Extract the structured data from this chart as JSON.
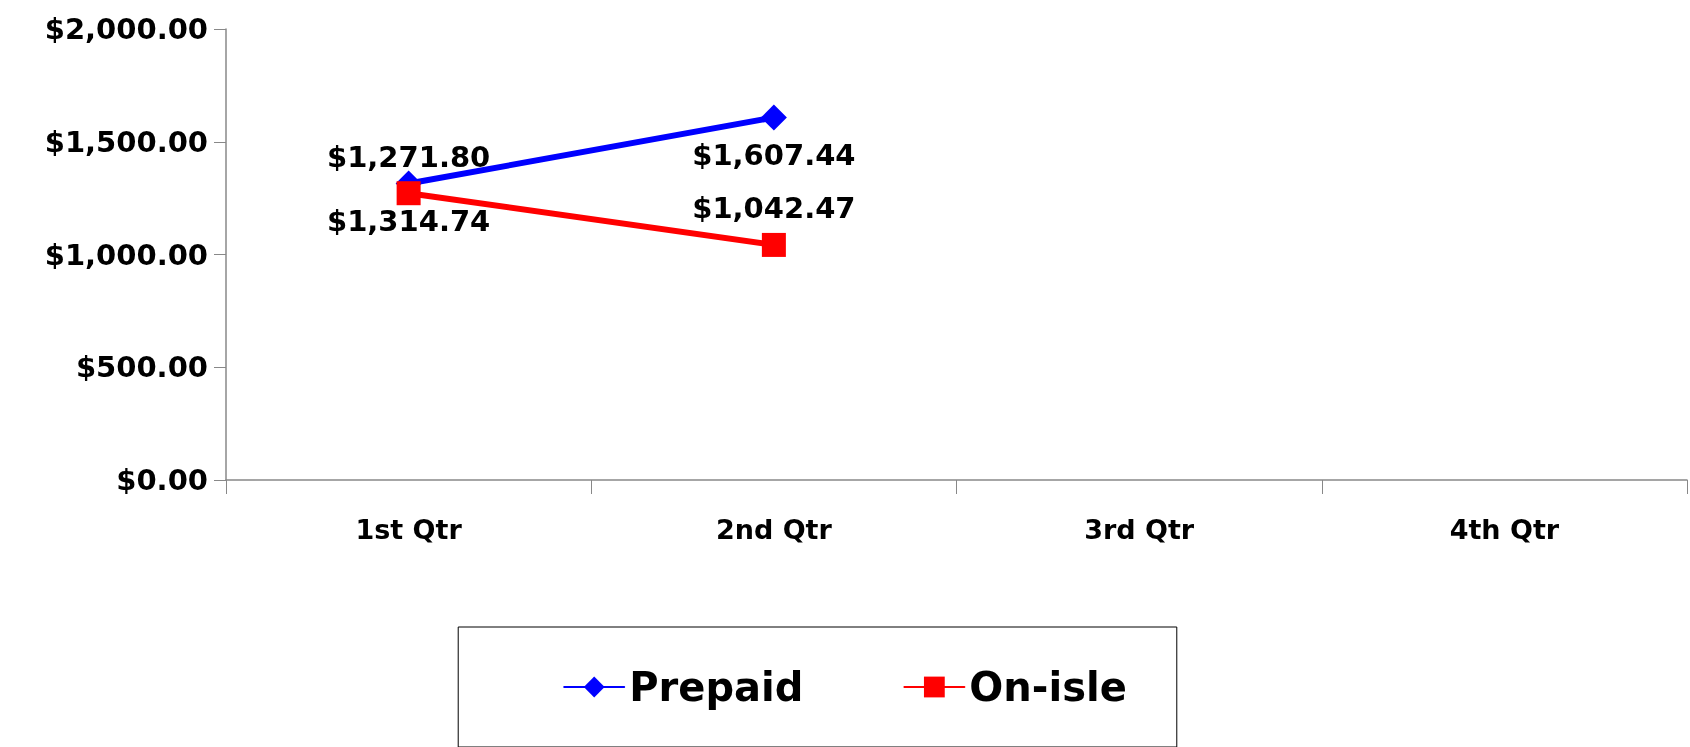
{
  "chart_data": {
    "type": "line",
    "categories": [
      "1st Qtr",
      "2nd Qtr",
      "3rd Qtr",
      "4th Qtr"
    ],
    "series": [
      {
        "name": "Prepaid",
        "color": "#0000ff",
        "marker": "diamond",
        "values": [
          1314.74,
          1607.44,
          null,
          null
        ],
        "value_labels": [
          "$1,314.74",
          "$1,607.44",
          null,
          null
        ]
      },
      {
        "name": "On-isle",
        "color": "#ff0000",
        "marker": "square",
        "values": [
          1271.8,
          1042.47,
          null,
          null
        ],
        "value_labels": [
          "$1,271.80",
          "$1,042.47",
          null,
          null
        ]
      }
    ],
    "ylim": [
      0,
      2000
    ],
    "yticks": [
      {
        "value": 0,
        "label": "$0.00"
      },
      {
        "value": 500,
        "label": "$500.00"
      },
      {
        "value": 1000,
        "label": "$1,000.00"
      },
      {
        "value": 1500,
        "label": "$1,500.00"
      },
      {
        "value": 2000,
        "label": "$2,000.00"
      }
    ],
    "grid": false,
    "legend": "bottom",
    "line_style": "solid"
  }
}
